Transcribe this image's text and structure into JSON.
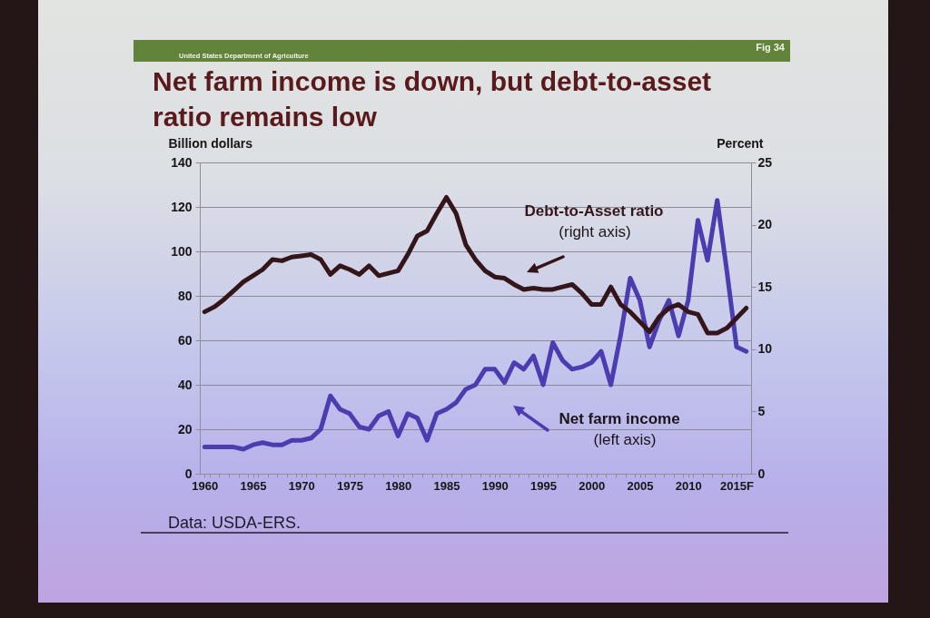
{
  "chart_data": {
    "type": "line",
    "title": "Net farm income is down, but debt-to-asset ratio remains low",
    "ylabel": "Billion dollars",
    "y2label": "Percent",
    "annotations": [
      "United States Department of Agriculture",
      "Fig 34",
      "(right axis)",
      "(left axis)",
      "Data: USDA-ERS."
    ],
    "x": [
      1960,
      1961,
      1962,
      1963,
      1964,
      1965,
      1966,
      1967,
      1968,
      1969,
      1970,
      1971,
      1972,
      1973,
      1974,
      1975,
      1976,
      1977,
      1978,
      1979,
      1980,
      1981,
      1982,
      1983,
      1984,
      1985,
      1986,
      1987,
      1988,
      1989,
      1990,
      1991,
      1992,
      1993,
      1994,
      1995,
      1996,
      1997,
      1998,
      1999,
      2000,
      2001,
      2002,
      2003,
      2004,
      2005,
      2006,
      2007,
      2008,
      2009,
      2010,
      2011,
      2012,
      2013,
      2014,
      2015,
      2016
    ],
    "series": [
      {
        "name": "Net farm income",
        "color": "#4b3cb0",
        "values": [
          12,
          12,
          12,
          12,
          11,
          13,
          14,
          13,
          13,
          15,
          15,
          16,
          20,
          35,
          29,
          27,
          21,
          20,
          26,
          28,
          17,
          27,
          25,
          15,
          27,
          29,
          32,
          38,
          40,
          47,
          47,
          41,
          50,
          47,
          53,
          40,
          59,
          51,
          47,
          48,
          50,
          55,
          40,
          62,
          88,
          78,
          57,
          69,
          78,
          62,
          78,
          114,
          96,
          123,
          91,
          57,
          55
        ]
      },
      {
        "name": "Debt-to-Asset ratio",
        "color": "#341519",
        "axis": "y2",
        "values": [
          13.0,
          13.4,
          14.0,
          14.7,
          15.4,
          15.9,
          16.4,
          17.2,
          17.1,
          17.4,
          17.5,
          17.6,
          17.2,
          16.0,
          16.7,
          16.4,
          16.0,
          16.7,
          15.9,
          16.1,
          16.3,
          17.6,
          19.1,
          19.5,
          20.9,
          22.2,
          20.9,
          18.4,
          17.2,
          16.3,
          15.8,
          15.7,
          15.2,
          14.8,
          14.9,
          14.8,
          14.8,
          15.0,
          15.2,
          14.5,
          13.6,
          13.6,
          15.0,
          13.6,
          13.0,
          12.2,
          11.4,
          12.6,
          13.3,
          13.6,
          13.0,
          12.8,
          11.3,
          11.3,
          11.7,
          12.5,
          13.3
        ]
      }
    ],
    "xlim": [
      1959.5,
      2016.5
    ],
    "xticks": [
      1960,
      {
        "value": 1960.5,
        "label": null
      },
      {
        "value": 1961.5,
        "label": null
      },
      {
        "value": 1962.5,
        "label": null
      },
      {
        "value": 1963.5,
        "label": null
      },
      {
        "value": 1964.5,
        "label": null
      },
      1965,
      {
        "value": 1965.5,
        "label": null
      },
      {
        "value": 1966.5,
        "label": null
      },
      {
        "value": 1967.5,
        "label": null
      },
      {
        "value": 1968.5,
        "label": null
      },
      {
        "value": 1969.5,
        "label": null
      },
      1970,
      {
        "value": 1970.5,
        "label": null
      },
      {
        "value": 1971.5,
        "label": null
      },
      {
        "value": 1972.5,
        "label": null
      },
      {
        "value": 1973.5,
        "label": null
      },
      {
        "value": 1974.5,
        "label": null
      },
      1975,
      {
        "value": 1975.5,
        "label": null
      },
      {
        "value": 1976.5,
        "label": null
      },
      {
        "value": 1977.5,
        "label": null
      },
      {
        "value": 1978.5,
        "label": null
      },
      {
        "value": 1979.5,
        "label": null
      },
      1980,
      {
        "value": 1980.5,
        "label": null
      },
      {
        "value": 1981.5,
        "label": null
      },
      {
        "value": 1982.5,
        "label": null
      },
      {
        "value": 1983.5,
        "label": null
      },
      {
        "value": 1984.5,
        "label": null
      },
      1985,
      {
        "value": 1985.5,
        "label": null
      },
      {
        "value": 1986.5,
        "label": null
      },
      {
        "value": 1987.5,
        "label": null
      },
      {
        "value": 1988.5,
        "label": null
      },
      {
        "value": 1989.5,
        "label": null
      },
      1990,
      {
        "value": 1990.5,
        "label": null
      },
      {
        "value": 1991.5,
        "label": null
      },
      {
        "value": 1992.5,
        "label": null
      },
      {
        "value": 1993.5,
        "label": null
      },
      {
        "value": 1994.5,
        "label": null
      },
      1995,
      {
        "value": 1995.5,
        "label": null
      },
      {
        "value": 1996.5,
        "label": null
      },
      {
        "value": 1997.5,
        "label": null
      },
      {
        "value": 1998.5,
        "label": null
      },
      {
        "value": 1999.5,
        "label": null
      },
      2000,
      {
        "value": 2000.5,
        "label": null
      },
      {
        "value": 2001.5,
        "label": null
      },
      {
        "value": 2002.5,
        "label": null
      },
      {
        "value": 2003.5,
        "label": null
      },
      {
        "value": 2004.5,
        "label": null
      },
      2005,
      {
        "value": 2005.5,
        "label": null
      },
      {
        "value": 2006.5,
        "label": null
      },
      {
        "value": 2007.5,
        "label": null
      },
      {
        "value": 2008.5,
        "label": null
      },
      {
        "value": 2009.5,
        "label": null
      },
      2010,
      {
        "value": 2010.5,
        "label": null
      },
      {
        "value": 2011.5,
        "label": null
      },
      {
        "value": 2012.5,
        "label": null
      },
      {
        "value": 2013.5,
        "label": null
      },
      {
        "value": 2014.5,
        "label": null
      },
      {
        "value": 2015,
        "label": "2015F"
      },
      {
        "value": 2015.5,
        "label": null
      }
    ],
    "ylim": [
      0,
      140
    ],
    "yticks": [
      0,
      20,
      40,
      60,
      80,
      100,
      120,
      140
    ],
    "y2lim": [
      0,
      25
    ],
    "y2ticks": [
      0,
      5,
      10,
      15,
      20,
      25
    ],
    "grid": "y"
  }
}
